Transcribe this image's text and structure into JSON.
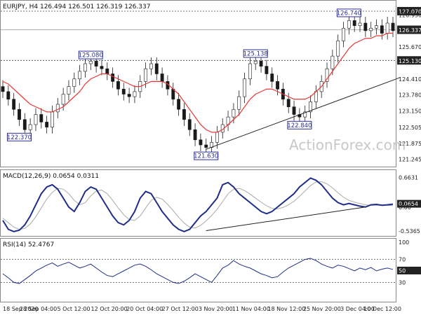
{
  "chart_data": {
    "type": "candlestick",
    "title": "EURJPY, H4",
    "ohlc_text": "126.494 126.501 126.319 126.337",
    "watermark": "ActionForex.com",
    "colors": {
      "price": "#1a1a1a",
      "ema": "#e53935",
      "macd": "#1f2d8a",
      "signal": "#aaaaaa",
      "trendline": "#222222",
      "boxes": "#2b2f8f"
    },
    "price_axis": {
      "ylim": [
        121.0,
        127.4
      ],
      "ticks": [
        "127.070",
        "126.930",
        "126.337",
        "125.670",
        "125.130",
        "124.410",
        "123.780",
        "123.150",
        "122.505",
        "121.875",
        "121.245"
      ],
      "tick_values": [
        127.07,
        126.93,
        126.337,
        125.67,
        125.13,
        124.41,
        123.78,
        123.15,
        122.505,
        121.875,
        121.245
      ],
      "highlight_levels": [
        {
          "label": "127.070",
          "value": 127.07
        },
        {
          "label": "126.337",
          "value": 126.337
        },
        {
          "label": "125.130",
          "value": 125.13
        }
      ]
    },
    "dashed_levels": [
      127.07,
      125.13
    ],
    "solid_level": 126.337,
    "x_tick_labels": [
      "18 Sep 2020",
      "28 Sep 04:00",
      "5 Oct 12:00",
      "12 Oct 20:00",
      "20 Oct 04:00",
      "27 Oct 12:00",
      "3 Nov 20:00",
      "11 Nov 04:00",
      "18 Nov 12:00",
      "25 Nov 20:00",
      "3 Dec 04:00",
      "10 Dec 12:00"
    ],
    "close_series": [
      123.9,
      123.6,
      123.2,
      122.8,
      122.4,
      122.6,
      123.0,
      122.7,
      122.5,
      123.1,
      123.4,
      123.8,
      124.1,
      124.4,
      124.7,
      125.0,
      125.1,
      124.9,
      124.8,
      124.6,
      124.3,
      124.0,
      123.8,
      123.7,
      123.9,
      124.3,
      124.8,
      125.0,
      124.6,
      124.3,
      124.0,
      123.6,
      123.2,
      122.8,
      122.4,
      122.0,
      121.8,
      121.7,
      121.9,
      122.3,
      122.6,
      122.9,
      123.2,
      123.7,
      124.4,
      125.0,
      125.1,
      124.9,
      124.6,
      124.3,
      124.0,
      123.6,
      123.3,
      123.0,
      122.9,
      123.1,
      123.5,
      123.9,
      124.3,
      124.8,
      125.3,
      125.9,
      126.4,
      126.7,
      126.5,
      126.6,
      126.3,
      126.4,
      126.5,
      126.2,
      126.6,
      126.3
    ],
    "ema_series": [
      124.3,
      124.2,
      124.0,
      123.8,
      123.6,
      123.4,
      123.3,
      123.2,
      123.1,
      123.1,
      123.2,
      123.3,
      123.5,
      123.7,
      123.9,
      124.2,
      124.4,
      124.5,
      124.6,
      124.6,
      124.5,
      124.4,
      124.3,
      124.2,
      124.1,
      124.1,
      124.2,
      124.3,
      124.3,
      124.3,
      124.2,
      124.0,
      123.8,
      123.5,
      123.2,
      122.9,
      122.6,
      122.4,
      122.3,
      122.3,
      122.4,
      122.6,
      122.8,
      123.0,
      123.3,
      123.6,
      123.8,
      123.9,
      124.0,
      124.0,
      123.9,
      123.8,
      123.7,
      123.6,
      123.6,
      123.6,
      123.7,
      123.9,
      124.1,
      124.4,
      124.7,
      125.0,
      125.3,
      125.6,
      125.8,
      125.9,
      126.0,
      126.0,
      126.1,
      126.1,
      126.2,
      126.2
    ],
    "annotations": [
      {
        "label": "122.370",
        "index": 3,
        "value": 122.37,
        "place": "below"
      },
      {
        "label": "125.080",
        "index": 16,
        "value": 125.08,
        "place": "above"
      },
      {
        "label": "121.630",
        "index": 37,
        "value": 121.63,
        "place": "below"
      },
      {
        "label": "125.138",
        "index": 46,
        "value": 125.138,
        "place": "above"
      },
      {
        "label": "122.840",
        "index": 54,
        "value": 122.84,
        "place": "below"
      },
      {
        "label": "126.740",
        "index": 63,
        "value": 126.74,
        "place": "above"
      }
    ],
    "trendline": {
      "from": {
        "index": 37,
        "value": 121.63
      },
      "to": {
        "index": 71,
        "value": 124.35
      }
    },
    "macd": {
      "title": "MACD(12,26,9) 0.0654 0.0311",
      "ticks": [
        "0.6631",
        "0.0654",
        "0.00",
        "-0.5365"
      ],
      "ylim": [
        -0.6,
        0.75
      ],
      "macd_series": [
        -0.3,
        -0.5,
        -0.55,
        -0.52,
        -0.4,
        -0.2,
        0.05,
        0.3,
        0.45,
        0.5,
        0.4,
        0.2,
        0.0,
        -0.1,
        0.1,
        0.35,
        0.45,
        0.4,
        0.2,
        0.0,
        -0.2,
        -0.35,
        -0.4,
        -0.3,
        -0.1,
        0.2,
        0.35,
        0.3,
        0.1,
        -0.1,
        -0.25,
        -0.4,
        -0.5,
        -0.55,
        -0.5,
        -0.35,
        -0.2,
        -0.1,
        0.05,
        0.2,
        0.5,
        0.55,
        0.45,
        0.3,
        0.2,
        0.1,
        0.0,
        -0.1,
        -0.15,
        -0.1,
        0.0,
        0.1,
        0.2,
        0.3,
        0.45,
        0.55,
        0.65,
        0.6,
        0.5,
        0.35,
        0.2,
        0.1,
        0.05,
        0.08,
        0.05,
        0.02,
        0.0,
        0.05,
        0.06,
        0.04,
        0.05,
        0.065
      ],
      "signal_series": [
        -0.25,
        -0.35,
        -0.45,
        -0.5,
        -0.48,
        -0.38,
        -0.22,
        -0.02,
        0.18,
        0.33,
        0.42,
        0.4,
        0.3,
        0.15,
        0.05,
        0.1,
        0.25,
        0.36,
        0.38,
        0.3,
        0.15,
        -0.02,
        -0.17,
        -0.28,
        -0.3,
        -0.2,
        -0.02,
        0.15,
        0.22,
        0.18,
        0.06,
        -0.08,
        -0.23,
        -0.36,
        -0.45,
        -0.47,
        -0.41,
        -0.31,
        -0.19,
        -0.05,
        0.12,
        0.3,
        0.4,
        0.42,
        0.37,
        0.29,
        0.2,
        0.11,
        0.03,
        -0.03,
        -0.04,
        -0.01,
        0.05,
        0.13,
        0.24,
        0.36,
        0.48,
        0.56,
        0.57,
        0.52,
        0.43,
        0.32,
        0.22,
        0.15,
        0.11,
        0.08,
        0.05,
        0.04,
        0.04,
        0.04,
        0.04,
        0.031
      ],
      "trendline": {
        "from": {
          "index": 37,
          "value": -0.53
        },
        "to": {
          "index": 66,
          "value": 0.0
        }
      }
    },
    "rsi": {
      "title": "RSI(14) 52.4767",
      "ticks": [
        "100",
        "70",
        "50",
        "30"
      ],
      "ylim": [
        0,
        100
      ],
      "levels": [
        70,
        30
      ],
      "series": [
        45,
        38,
        30,
        28,
        35,
        42,
        50,
        55,
        60,
        64,
        58,
        62,
        65,
        60,
        55,
        58,
        62,
        55,
        48,
        42,
        40,
        45,
        50,
        55,
        60,
        62,
        58,
        52,
        45,
        40,
        35,
        30,
        28,
        32,
        38,
        45,
        40,
        35,
        30,
        42,
        55,
        60,
        68,
        62,
        58,
        55,
        50,
        45,
        42,
        38,
        40,
        48,
        55,
        60,
        65,
        70,
        72,
        68,
        62,
        58,
        55,
        60,
        58,
        54,
        50,
        55,
        52,
        56,
        50,
        53,
        55,
        52.5
      ]
    },
    "panel_sep_labels": []
  }
}
